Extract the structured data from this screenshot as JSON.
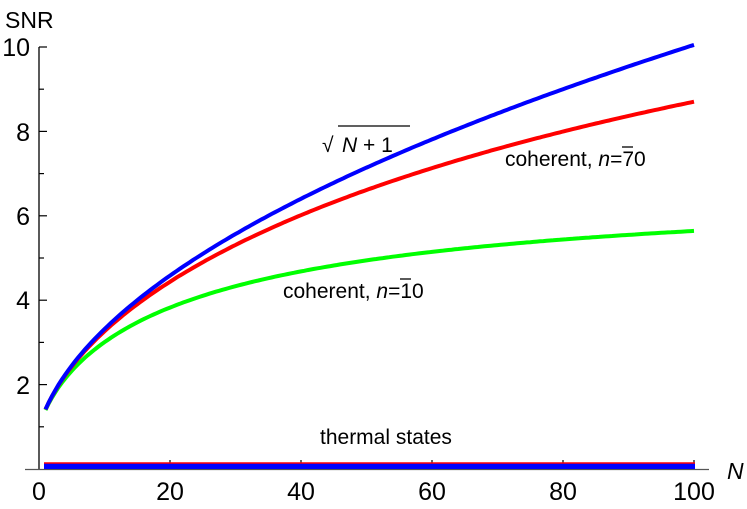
{
  "chart_data": {
    "type": "line",
    "title": "",
    "xlabel": "N",
    "ylabel": "SNR",
    "xlim": [
      0,
      100
    ],
    "ylim": [
      0,
      10
    ],
    "x_ticks": [
      0,
      20,
      40,
      60,
      80,
      100
    ],
    "y_ticks": [
      2,
      4,
      6,
      8,
      10
    ],
    "x_tick_labels": [
      "0",
      "20",
      "40",
      "60",
      "80",
      "100"
    ],
    "y_tick_labels": [
      "2",
      "4",
      "6",
      "8",
      "10"
    ],
    "grid": false,
    "legend": "none (inline annotations)",
    "x": [
      1,
      5,
      10,
      20,
      30,
      40,
      50,
      60,
      70,
      80,
      90,
      100
    ],
    "series": [
      {
        "name": "sqrt(N+1)",
        "color": "#0000ff",
        "values": [
          1.41,
          2.45,
          3.32,
          4.58,
          5.57,
          6.4,
          7.14,
          7.81,
          8.43,
          9.0,
          9.54,
          10.05
        ]
      },
      {
        "name": "coherent, n̄=70",
        "color": "#ff0000",
        "values": [
          1.41,
          2.43,
          3.27,
          4.45,
          5.34,
          6.06,
          6.68,
          7.22,
          7.71,
          8.15,
          8.55,
          8.72
        ]
      },
      {
        "name": "coherent, n̄=10",
        "color": "#00ff00",
        "values": [
          1.4,
          2.32,
          2.99,
          3.8,
          4.31,
          4.67,
          4.95,
          5.17,
          5.34,
          5.48,
          5.58,
          5.65
        ]
      },
      {
        "name": "thermal states (red)",
        "color": "#ff0000",
        "values": [
          0.1,
          0.1,
          0.1,
          0.1,
          0.1,
          0.1,
          0.1,
          0.1,
          0.1,
          0.1,
          0.1,
          0.1
        ]
      },
      {
        "name": "thermal states (blue)",
        "color": "#0000ff",
        "values": [
          0.05,
          0.05,
          0.05,
          0.05,
          0.05,
          0.05,
          0.05,
          0.05,
          0.05,
          0.05,
          0.05,
          0.05
        ]
      }
    ],
    "annotations": [
      {
        "text": "√(N+1)",
        "near_series": "sqrt(N+1)",
        "x": 45,
        "y": 7.7
      },
      {
        "text": "coherent, n̄=70",
        "x": 82,
        "y": 7.3
      },
      {
        "text": "coherent, n̄=10",
        "x": 45,
        "y": 4.0
      },
      {
        "text": "thermal states",
        "x": 45,
        "y": 0.7
      }
    ]
  },
  "labels": {
    "ylabel": "SNR",
    "xlabel": "N",
    "sqrt_label_rad": "√",
    "sqrt_label_body": "N + 1",
    "coh70_prefix": "coherent, ",
    "coh70_nbar": "n",
    "coh70_suffix": "=70",
    "coh10_prefix": "coherent, ",
    "coh10_nbar": "n",
    "coh10_suffix": "=10",
    "thermal": "thermal states",
    "xt0": "0",
    "xt20": "20",
    "xt40": "40",
    "xt60": "60",
    "xt80": "80",
    "xt100": "100",
    "yt2": "2",
    "yt4": "4",
    "yt6": "6",
    "yt8": "8",
    "yt10": "10"
  }
}
